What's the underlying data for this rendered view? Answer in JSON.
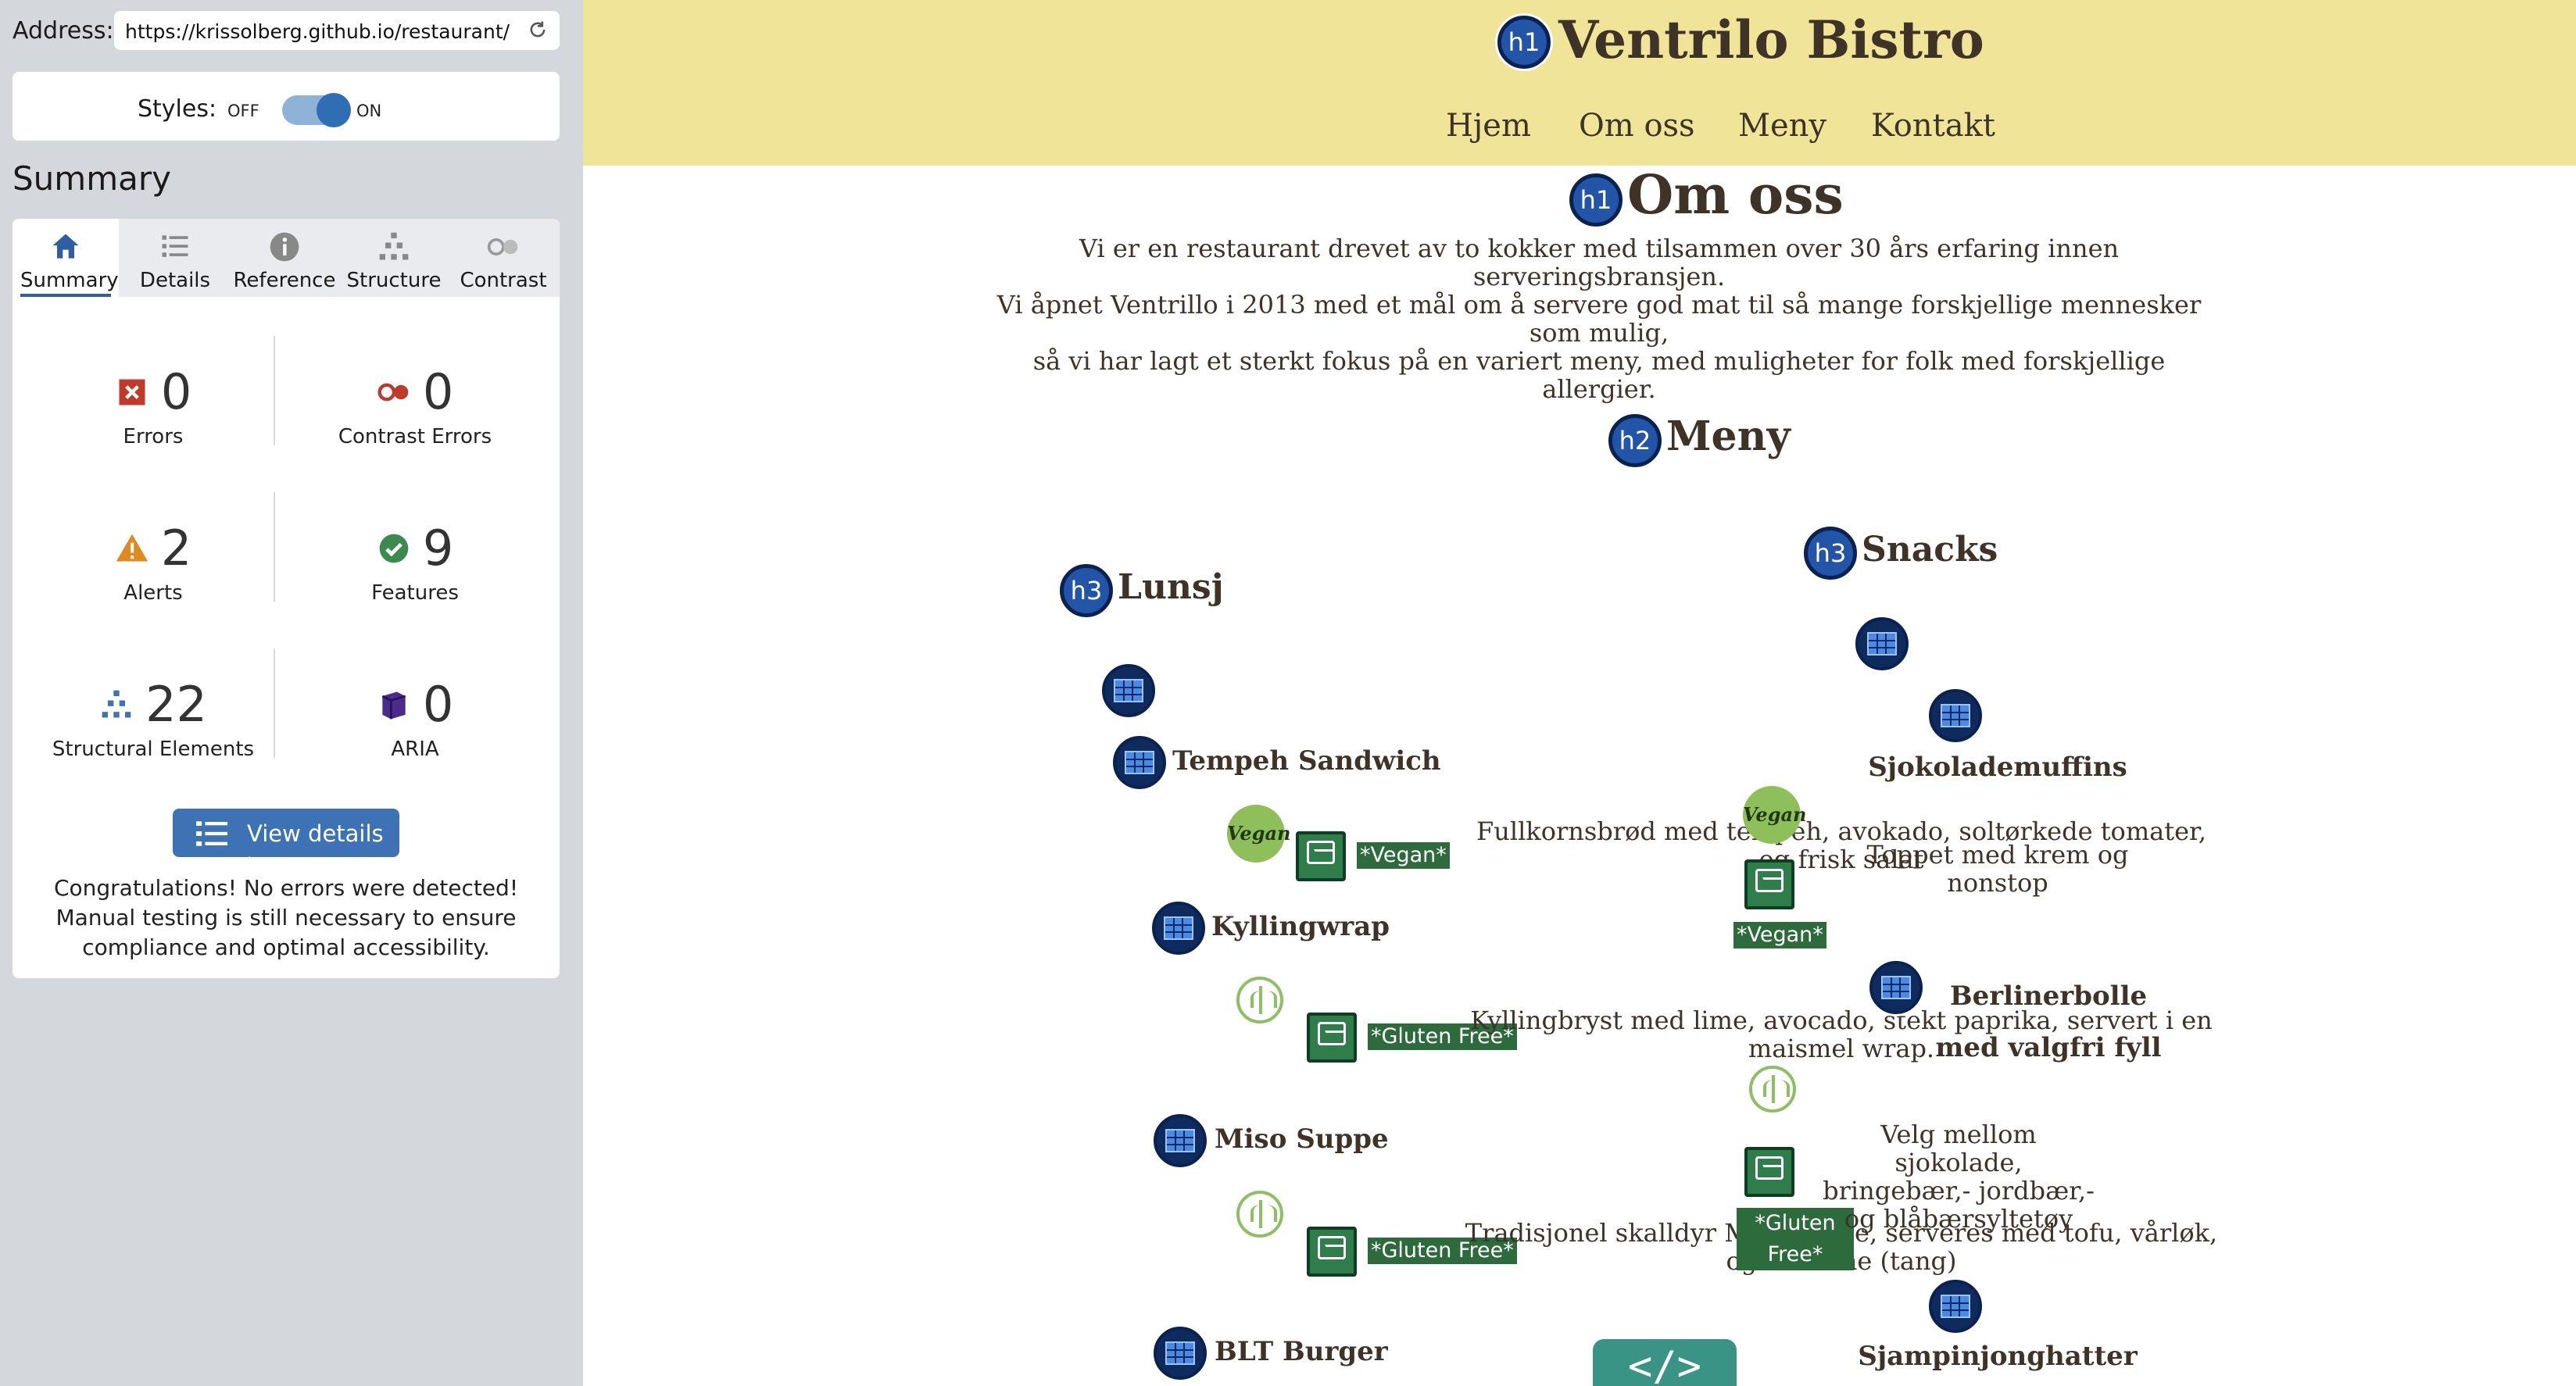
{
  "extension": {
    "address_label": "Address:",
    "address_value": "https://krissolberg.github.io/restaurant/",
    "styles_label": "Styles:",
    "styles_off": "OFF",
    "styles_on": "ON",
    "summary_title": "Summary",
    "tabs": [
      {
        "label": "Summary",
        "icon": "home-icon",
        "active": true
      },
      {
        "label": "Details",
        "icon": "list-icon"
      },
      {
        "label": "Reference",
        "icon": "info-icon"
      },
      {
        "label": "Structure",
        "icon": "hierarchy-icon"
      },
      {
        "label": "Contrast",
        "icon": "contrast-icon"
      }
    ],
    "stats": {
      "errors": {
        "value": "0",
        "label": "Errors"
      },
      "contrast_errors": {
        "value": "0",
        "label": "Contrast Errors"
      },
      "alerts": {
        "value": "2",
        "label": "Alerts"
      },
      "features": {
        "value": "9",
        "label": "Features"
      },
      "structural": {
        "value": "22",
        "label": "Structural Elements"
      },
      "aria": {
        "value": "0",
        "label": "ARIA"
      }
    },
    "view_details": "View details ›",
    "congrats": "Congratulations! No errors were detected! Manual testing is still necessary to ensure compliance and optimal accessibility.",
    "colors": {
      "accent": "#3d72b5",
      "error": "#c0392b",
      "alert": "#e08a1e",
      "feature": "#3b8a4e",
      "aria": "#4b2c8c"
    }
  },
  "site": {
    "title": "Ventrilo Bistro",
    "nav": [
      "Hjem",
      "Om oss",
      "Meny",
      "Kontakt"
    ],
    "badges": {
      "h1": "h1",
      "h2": "h2",
      "h3": "h3"
    },
    "about_heading": "Om oss",
    "about_lines": [
      "Vi er en restaurant drevet av to kokker med tilsammen over 30 års erfaring innen serveringsbransjen.",
      "Vi åpnet Ventrillo i 2013 med et mål om å servere god mat til så mange forskjellige mennesker som mulig,",
      "så vi har lagt et sterkt fokus på en variert meny, med muligheter for folk med forskjellige allergier."
    ],
    "menu_heading": "Meny",
    "lunsj": {
      "heading": "Lunsj",
      "items": [
        {
          "name": "Tempeh Sandwich",
          "desc": "Fullkornsbrød med tempeh, avokado, soltørkede tomater, og frisk salat",
          "tag": "*Vegan*",
          "logo": "vegan"
        },
        {
          "name": "Kyllingwrap",
          "desc": "Kyllingbryst med lime, avocado, stekt paprika, servert i en maismel wrap.",
          "tag": "*Gluten Free*",
          "logo": "gluten-free"
        },
        {
          "name": "Miso Suppe",
          "desc": "Tradisjonel skalldyr Miso suppe, serveres med tofu, vårløk, og Wakame (tang)",
          "tag": "*Gluten Free*",
          "logo": "gluten-free"
        },
        {
          "name": "BLT Burger"
        }
      ]
    },
    "snacks": {
      "heading": "Snacks",
      "items": [
        {
          "name": "Sjokolademuffins",
          "desc": "Toppet med krem og nonstop",
          "tag": "*Vegan*",
          "logo": "vegan"
        },
        {
          "name": "Berlinerbolle med valgfri fyll",
          "desc": "Velg mellom sjokolade, bringebær,- jordbær,- og blåbærsyltetøy",
          "tag": "*Gluten Free*",
          "logo": "gluten-free"
        },
        {
          "name": "Sjampinjonghatter"
        }
      ]
    },
    "vegan_logo_text": "Vegan",
    "code_button": "</>",
    "colors": {
      "header_bg": "#efe497",
      "text": "#3f3227",
      "badge": "#2255a8",
      "alt_tag": "#2e6b3c"
    }
  }
}
